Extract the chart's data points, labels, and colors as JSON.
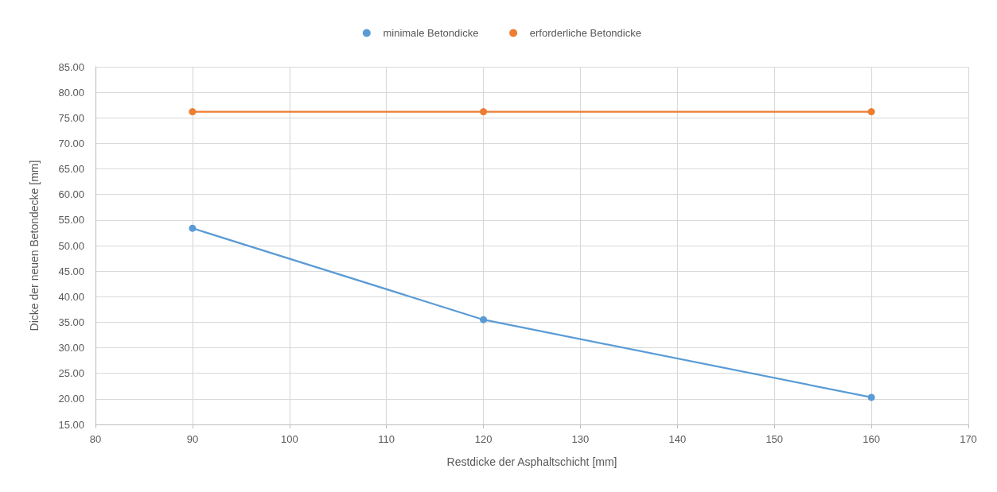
{
  "chart_data": {
    "type": "line",
    "xlabel": "Restdicke der Asphaltschicht [mm]",
    "ylabel": "Dicke der neuen Betondecke [mm]",
    "x": [
      90,
      120,
      160
    ],
    "series": [
      {
        "name": "minimale Betondicke",
        "color": "#5b9bd5",
        "values": [
          53.4,
          35.5,
          20.3
        ]
      },
      {
        "name": "erforderliche Betondicke",
        "color": "#ed7d31",
        "values": [
          76.2,
          76.2,
          76.2
        ]
      }
    ],
    "xlim": [
      80,
      170
    ],
    "xticks": [
      80,
      90,
      100,
      110,
      120,
      130,
      140,
      150,
      160,
      170
    ],
    "ylim": [
      15,
      85
    ],
    "yticks": [
      {
        "value": 15,
        "label": "15.00"
      },
      {
        "value": 20,
        "label": "20.00"
      },
      {
        "value": 25,
        "label": "25.00"
      },
      {
        "value": 30,
        "label": "30.00"
      },
      {
        "value": 35,
        "label": "35.00"
      },
      {
        "value": 40,
        "label": "40.00"
      },
      {
        "value": 45,
        "label": "45.00"
      },
      {
        "value": 50,
        "label": "50.00"
      },
      {
        "value": 55,
        "label": "55.00"
      },
      {
        "value": 60,
        "label": "60.00"
      },
      {
        "value": 65,
        "label": "65.00"
      },
      {
        "value": 70,
        "label": "70.00"
      },
      {
        "value": 75,
        "label": "75.00"
      },
      {
        "value": 80,
        "label": "80.00"
      },
      {
        "value": 85,
        "label": "85.00"
      }
    ],
    "grid": true,
    "legend": "top",
    "marker": "circle",
    "line_style": "solid"
  }
}
